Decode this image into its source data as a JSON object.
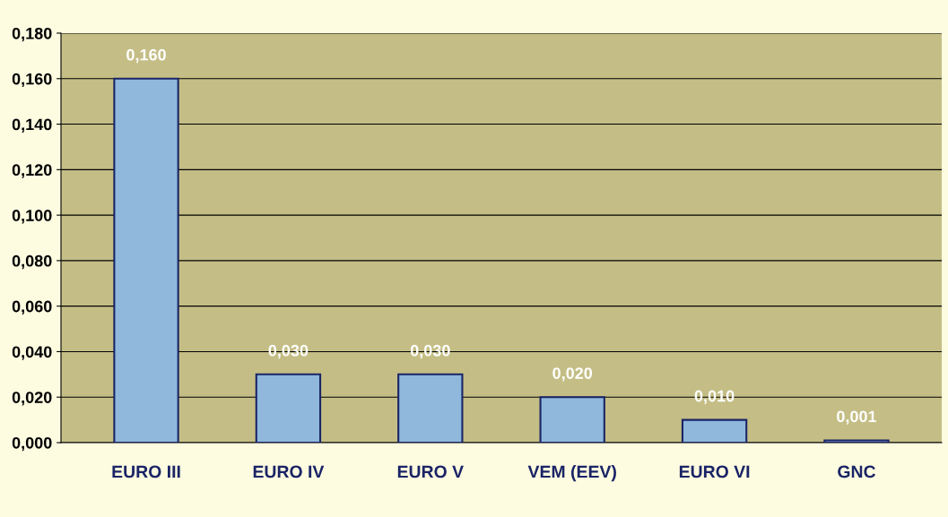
{
  "chart_data": {
    "type": "bar",
    "categories": [
      "EURO III",
      "EURO IV",
      "EURO V",
      "VEM (EEV)",
      "EURO VI",
      "GNC"
    ],
    "values": [
      0.16,
      0.03,
      0.03,
      0.02,
      0.01,
      0.001
    ],
    "value_labels": [
      "0,160",
      "0,030",
      "0,030",
      "0,020",
      "0,010",
      "0,001"
    ],
    "color": "#8fb8dc",
    "ylim": [
      0,
      0.18
    ],
    "yticks": [
      {
        "value": 0,
        "label": "0,000"
      },
      {
        "value": 0.02,
        "label": "0,020"
      },
      {
        "value": 0.04,
        "label": "0,040"
      },
      {
        "value": 0.06,
        "label": "0,060"
      },
      {
        "value": 0.08,
        "label": "0,080"
      },
      {
        "value": 0.1,
        "label": "0,100"
      },
      {
        "value": 0.12,
        "label": "0,120"
      },
      {
        "value": 0.14,
        "label": "0,140"
      },
      {
        "value": 0.16,
        "label": "0,160"
      },
      {
        "value": 0.18,
        "label": "0,180"
      }
    ],
    "grid": "y"
  }
}
